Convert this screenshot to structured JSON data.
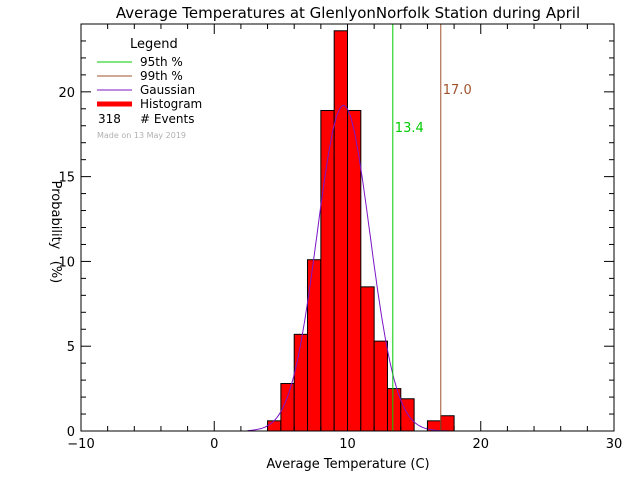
{
  "chart_data": {
    "type": "bar",
    "title": "Average Temperatures at GlenlyonNorfolk Station during April",
    "xlabel": "Average Temperature (C)",
    "ylabel_line1": "Probability",
    "ylabel_line2": "(%)",
    "xlim": [
      -10,
      30
    ],
    "ylim": [
      0,
      24
    ],
    "xticks": [
      -10,
      0,
      10,
      20,
      30
    ],
    "yticks": [
      0,
      5,
      10,
      15,
      20
    ],
    "bin_width": 1.0,
    "bins": [
      {
        "x0": 4.0,
        "value": 0.6
      },
      {
        "x0": 5.0,
        "value": 2.8
      },
      {
        "x0": 6.0,
        "value": 5.7
      },
      {
        "x0": 7.0,
        "value": 10.1
      },
      {
        "x0": 8.0,
        "value": 18.9
      },
      {
        "x0": 9.0,
        "value": 23.6
      },
      {
        "x0": 10.0,
        "value": 18.9
      },
      {
        "x0": 11.0,
        "value": 8.5
      },
      {
        "x0": 12.0,
        "value": 5.3
      },
      {
        "x0": 13.0,
        "value": 2.5
      },
      {
        "x0": 14.0,
        "value": 1.9
      },
      {
        "x0": 16.0,
        "value": 0.6
      },
      {
        "x0": 17.0,
        "value": 0.9
      }
    ],
    "gaussian": {
      "mean": 9.7,
      "sigma": 1.98,
      "peak": 19.2
    },
    "percentile_95": {
      "value": 13.4,
      "label": "13.4"
    },
    "percentile_99": {
      "value": 17.0,
      "label": "17.0"
    },
    "legend": {
      "title": "Legend",
      "items": [
        "95th %",
        "99th %",
        "Gaussian",
        "Histogram"
      ],
      "events_count": "318",
      "events_label": "# Events",
      "made_on": "Made on 13 May 2019"
    },
    "colors": {
      "histogram": "#ff0000",
      "p95": "#00cc00",
      "p99": "#a0522d",
      "gaussian": "#7b16c8",
      "axis": "#000000",
      "made_on": "#b0b0b0"
    }
  }
}
